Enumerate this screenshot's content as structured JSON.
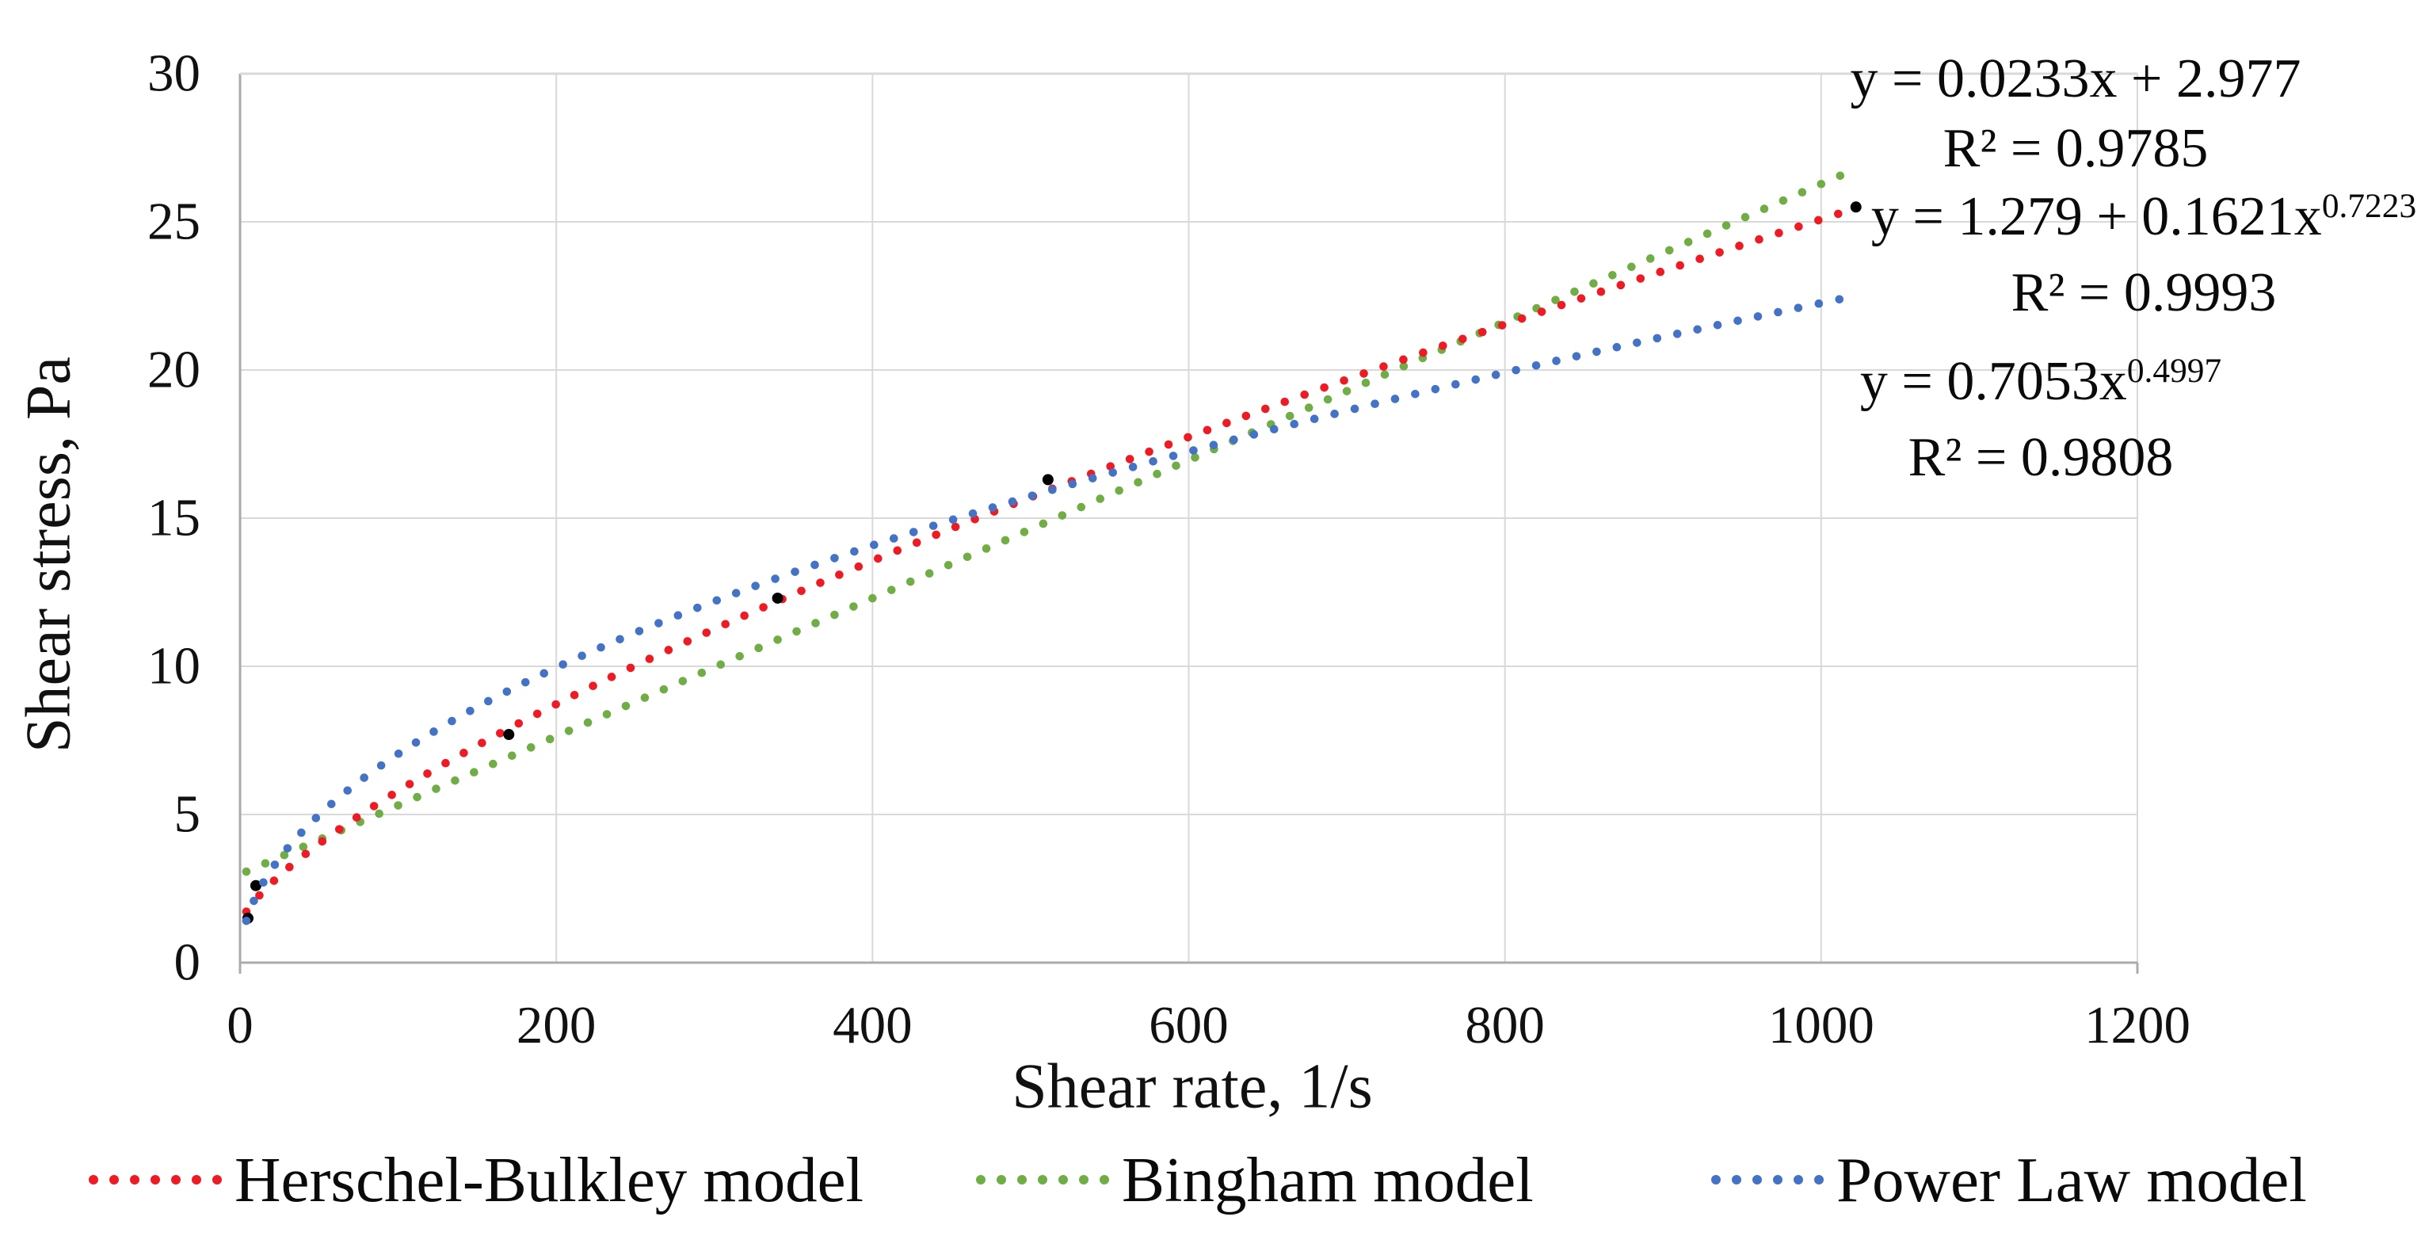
{
  "figure_background": "#ffffff",
  "chart_data": {
    "type": "scatter",
    "title": "",
    "xlabel": "Shear rate, 1/s",
    "ylabel": "Shear stress, Pa",
    "xlim": [
      0,
      1200
    ],
    "ylim": [
      0,
      30
    ],
    "x_ticks": [
      0,
      200,
      400,
      600,
      800,
      1000,
      1200
    ],
    "y_ticks": [
      0,
      5,
      10,
      15,
      20,
      25,
      30
    ],
    "grid": true,
    "grid_color": "#d9d9d9",
    "axis_color": "#ababab",
    "point_color": "#000000",
    "data_points": [
      {
        "x": 5,
        "y": 1.5
      },
      {
        "x": 10,
        "y": 2.6
      },
      {
        "x": 170,
        "y": 7.7
      },
      {
        "x": 340,
        "y": 12.3
      },
      {
        "x": 511,
        "y": 16.3
      },
      {
        "x": 1022,
        "y": 25.5
      }
    ],
    "series": [
      {
        "name": "Herschel-Bulkley model",
        "color": "#ed1b24",
        "style": "dotted",
        "model": "herschel_bulkley",
        "params": {
          "tau0": 1.279,
          "k": 0.1621,
          "n": 0.7223
        },
        "equation": "y = 1.279 + 0.1621x^0.7223",
        "r2": 0.9993,
        "x_range": [
          4,
          1022
        ]
      },
      {
        "name": "Bingham model",
        "color": "#70ad47",
        "style": "dotted",
        "model": "linear",
        "params": {
          "slope": 0.0233,
          "intercept": 2.977
        },
        "equation": "y = 0.0233x + 2.977",
        "r2": 0.9785,
        "x_range": [
          4,
          1012
        ]
      },
      {
        "name": "Power Law model",
        "color": "#4472c4",
        "style": "dotted",
        "model": "power",
        "params": {
          "k": 0.7053,
          "n": 0.4997
        },
        "equation": "y = 0.7053x^0.4997",
        "r2": 0.9808,
        "x_range": [
          4,
          1016
        ]
      }
    ],
    "legend_position": "bottom",
    "annotations": [
      {
        "line1_base": "y = 0.0233x + 2.977",
        "line1_sup": "",
        "line2": "R² = 0.9785"
      },
      {
        "line1_base": "y = 1.279 + 0.1621x",
        "line1_sup": "0.7223",
        "line2": "R² = 0.9993"
      },
      {
        "line1_base": "y = 0.7053x",
        "line1_sup": "0.4997",
        "line2": "R² = 0.9808"
      }
    ]
  },
  "legend": {
    "items": [
      {
        "label": "Herschel-Bulkley model",
        "marker_color": "#ed1b24"
      },
      {
        "label": "Bingham model",
        "marker_color": "#70ad47"
      },
      {
        "label": "Power Law model",
        "marker_color": "#4472c4"
      }
    ]
  }
}
